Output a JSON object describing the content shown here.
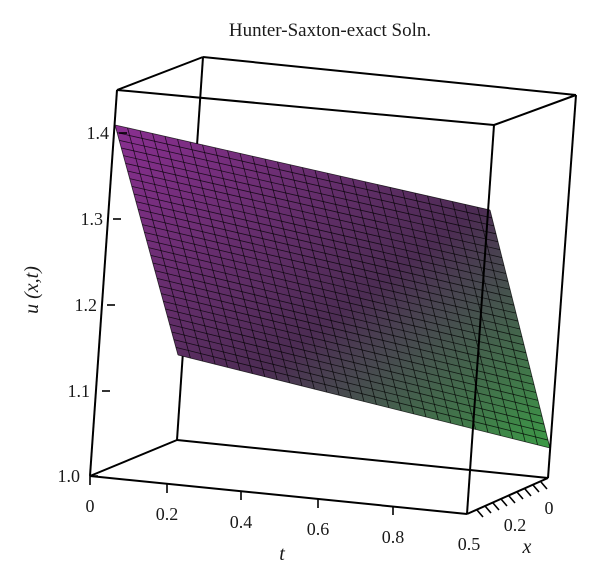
{
  "chart_data": {
    "type": "surface3d",
    "title": "Hunter-Saxton-exact Soln.",
    "xlabel": "t",
    "ylabel": "x",
    "zlabel": "u (x,t)",
    "t_ticks": [
      "0",
      "0.2",
      "0.4",
      "0.6",
      "0.8"
    ],
    "t_end_label": "0.5",
    "x_ticks": [
      "0.2",
      "0"
    ],
    "z_ticks": [
      "1.0",
      "1.1",
      "1.2",
      "1.3",
      "1.4"
    ],
    "t_range": [
      0,
      1
    ],
    "x_range": [
      0,
      0.5
    ],
    "z_range": [
      1.0,
      1.45
    ],
    "grid_lines": 30,
    "corner_values": {
      "t0_xfar": 1.41,
      "t0_xnear": 1.13,
      "t1_xfar": 1.31,
      "t1_xnear": 1.02
    },
    "colors": {
      "start": "#8a2f91",
      "middle": "#4c2c53",
      "end": "#3c9a46"
    }
  }
}
